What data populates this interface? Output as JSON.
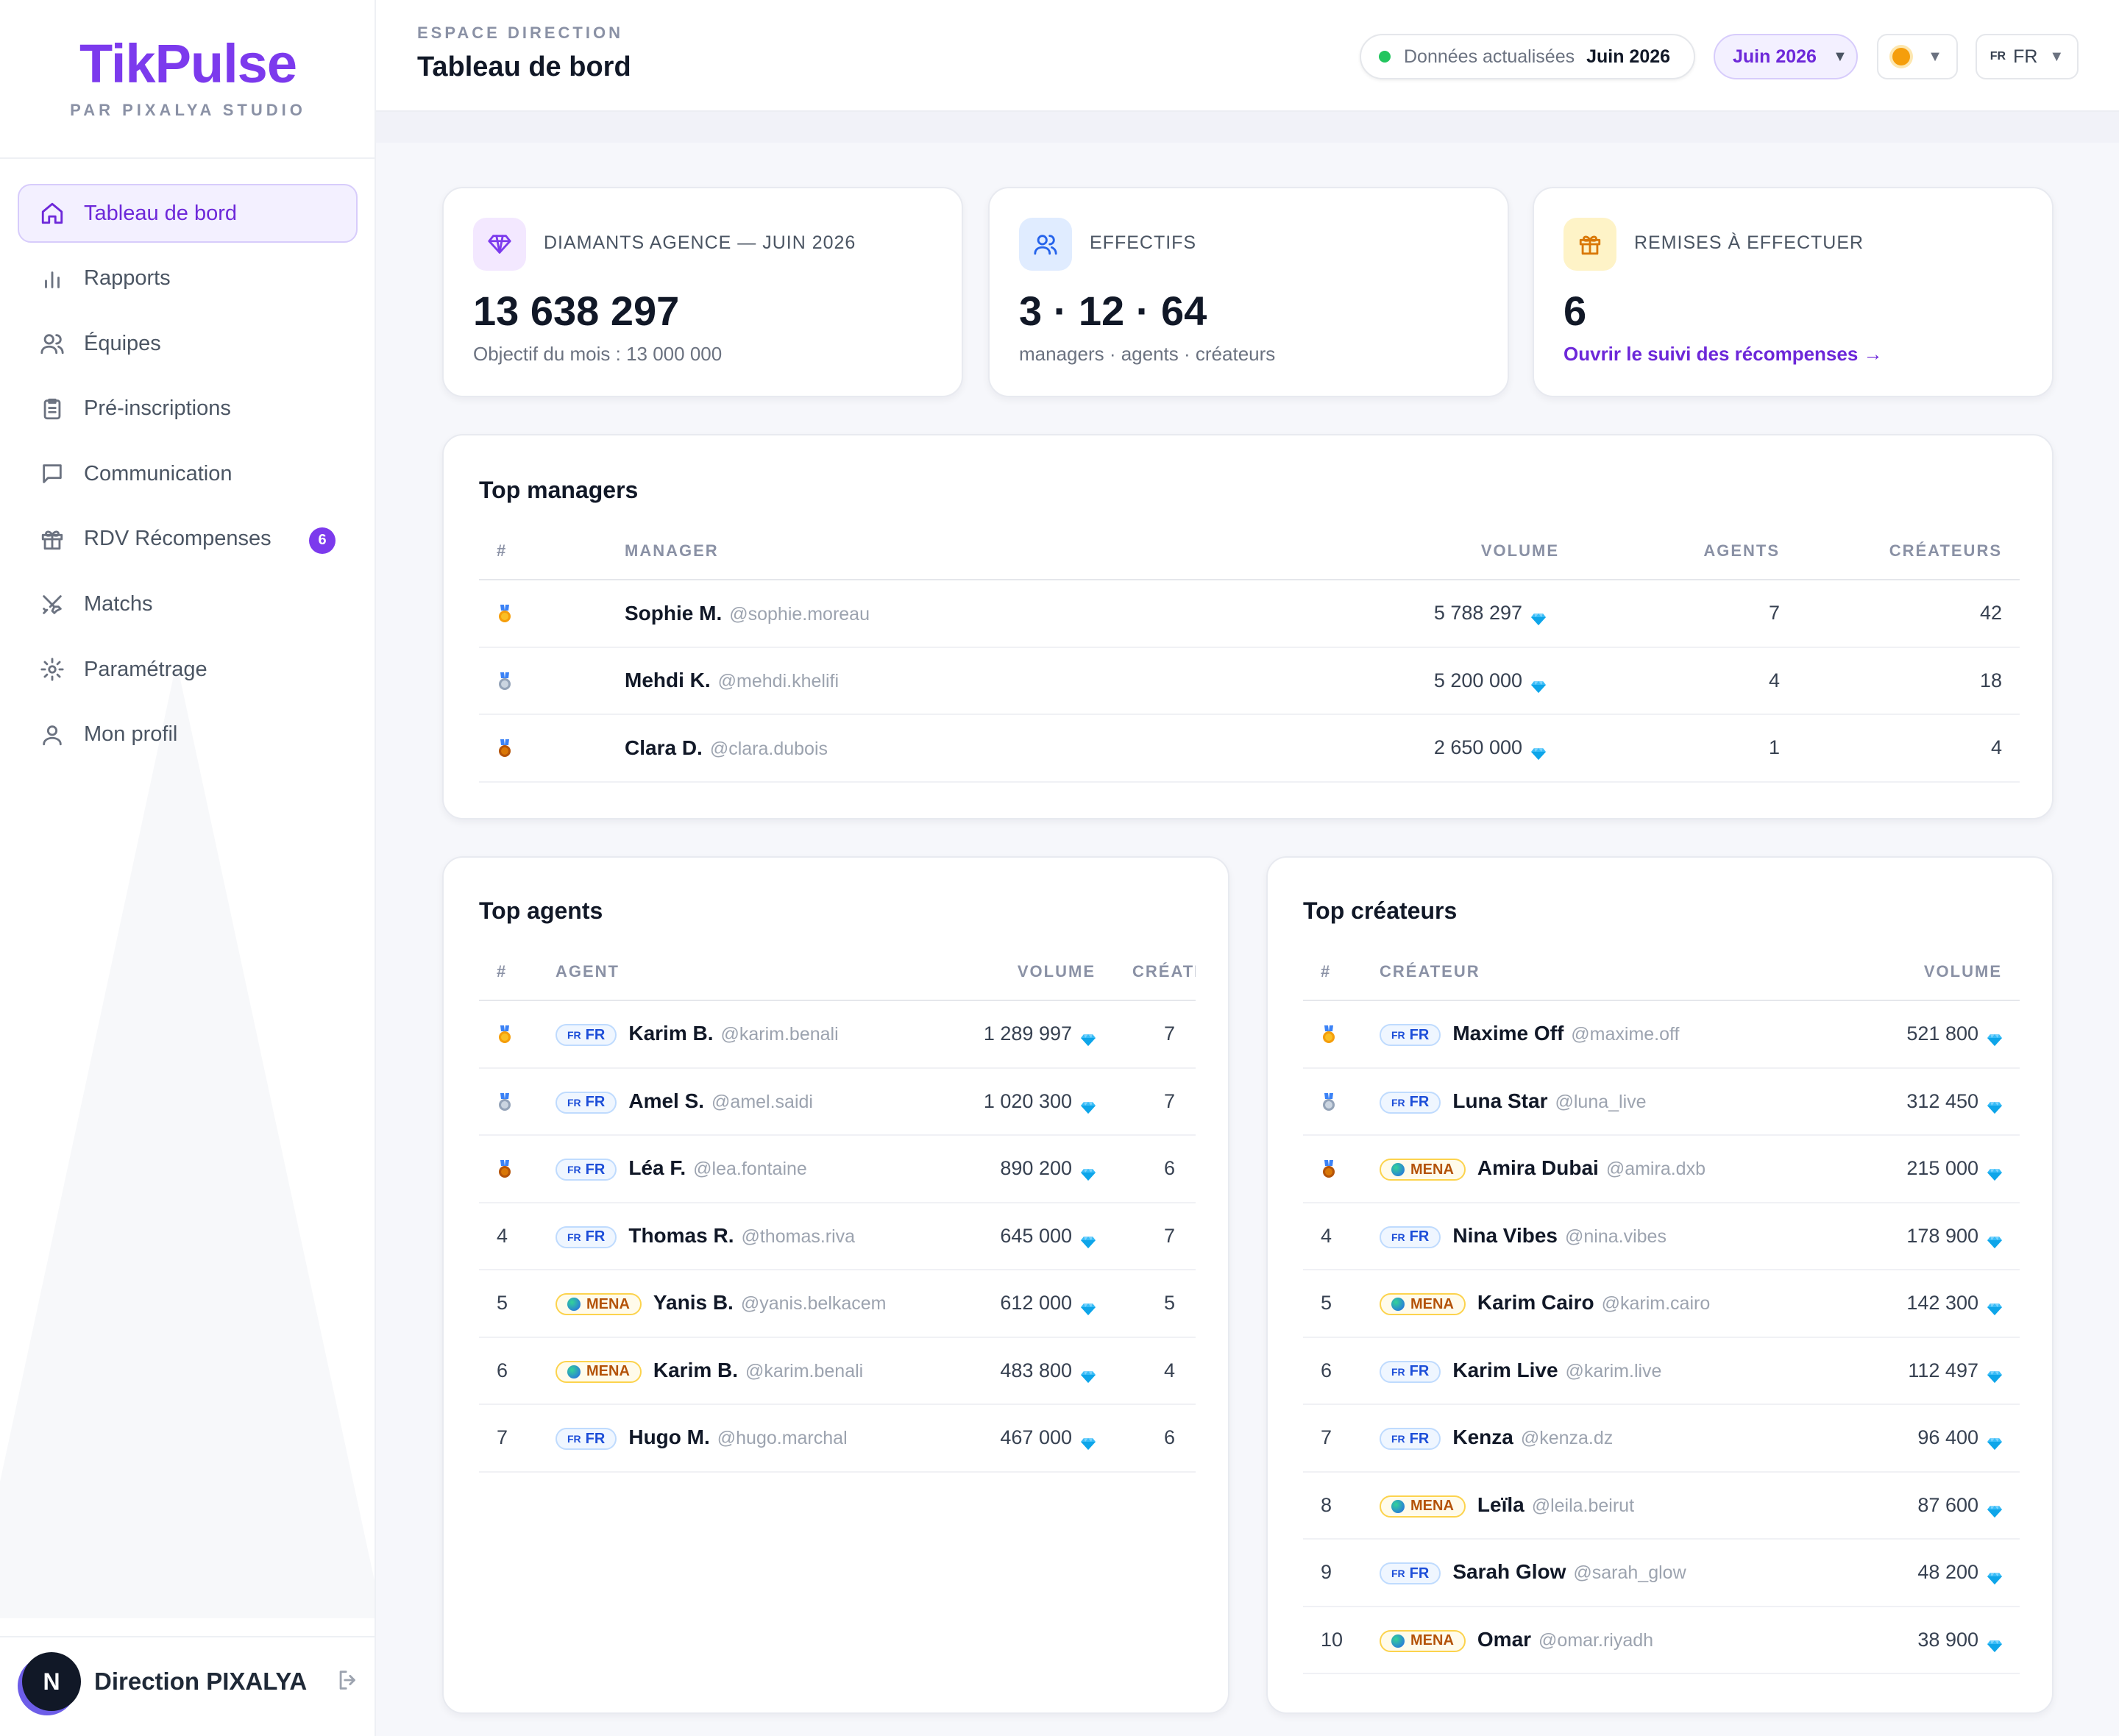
{
  "brand": {
    "name": "TikPulse",
    "subtitle": "PAR PIXALYA STUDIO"
  },
  "sidebar": {
    "items": [
      {
        "label": "Tableau de bord",
        "icon": "home-icon",
        "active": true
      },
      {
        "label": "Rapports",
        "icon": "bar-chart-icon"
      },
      {
        "label": "Équipes",
        "icon": "users-icon"
      },
      {
        "label": "Pré-inscriptions",
        "icon": "clipboard-icon"
      },
      {
        "label": "Communication",
        "icon": "message-icon"
      },
      {
        "label": "RDV Récompenses",
        "icon": "gift-icon",
        "badge": "6"
      },
      {
        "label": "Matchs",
        "icon": "swords-icon"
      },
      {
        "label": "Paramétrage",
        "icon": "gear-icon"
      },
      {
        "label": "Mon profil",
        "icon": "user-icon"
      }
    ],
    "user": {
      "initial": "N",
      "name": "Direction PIXALYA"
    }
  },
  "header": {
    "eyebrow": "ESPACE DIRECTION",
    "title": "Tableau de bord",
    "status_label": "Données actualisées",
    "status_value": "Juin 2026",
    "month": "Juin 2026",
    "lang": "FR",
    "lang_flag": "FR"
  },
  "colors": {
    "accent": "#7c3aed",
    "fr_tag": "#1d4ed8",
    "mena_tag": "#b45309",
    "status": "#22c55e"
  },
  "stats": {
    "diamonds": {
      "label": "DIAMANTS AGENCE — JUIN 2026",
      "value": "13 638 297",
      "sub": "Objectif du mois : 13 000 000"
    },
    "staff": {
      "label": "EFFECTIFS",
      "value": "3 · 12 · 64",
      "sub": "managers · agents · créateurs"
    },
    "rewards": {
      "label": "REMISES À EFFECTUER",
      "value": "6",
      "link": "Ouvrir le suivi des récompenses →"
    }
  },
  "top_managers": {
    "title": "Top managers",
    "columns": {
      "rank": "#",
      "name": "MANAGER",
      "volume": "VOLUME",
      "agents": "AGENTS",
      "creators": "CRÉATEURS"
    },
    "rows": [
      {
        "rank": "1",
        "name": "Sophie M.",
        "handle": "@sophie.moreau",
        "volume": "5 788 297",
        "agents": "7",
        "creators": "42"
      },
      {
        "rank": "2",
        "name": "Mehdi K.",
        "handle": "@mehdi.khelifi",
        "volume": "5 200 000",
        "agents": "4",
        "creators": "18"
      },
      {
        "rank": "3",
        "name": "Clara D.",
        "handle": "@clara.dubois",
        "volume": "2 650 000",
        "agents": "1",
        "creators": "4"
      }
    ]
  },
  "top_agents": {
    "title": "Top agents",
    "columns": {
      "rank": "#",
      "name": "AGENT",
      "volume": "VOLUME",
      "creators": "CRÉATEURS"
    },
    "rows": [
      {
        "rank": "1",
        "tag": "FR",
        "name": "Karim B.",
        "handle": "@karim.benali",
        "volume": "1 289 997",
        "creators": "7"
      },
      {
        "rank": "2",
        "tag": "FR",
        "name": "Amel S.",
        "handle": "@amel.saidi",
        "volume": "1 020 300",
        "creators": "7"
      },
      {
        "rank": "3",
        "tag": "FR",
        "name": "Léa F.",
        "handle": "@lea.fontaine",
        "volume": "890 200",
        "creators": "6"
      },
      {
        "rank": "4",
        "tag": "FR",
        "name": "Thomas R.",
        "handle": "@thomas.riva",
        "volume": "645 000",
        "creators": "7"
      },
      {
        "rank": "5",
        "tag": "MENA",
        "name": "Yanis B.",
        "handle": "@yanis.belkacem",
        "volume": "612 000",
        "creators": "5"
      },
      {
        "rank": "6",
        "tag": "MENA",
        "name": "Karim B.",
        "handle": "@karim.benali",
        "volume": "483 800",
        "creators": "4"
      },
      {
        "rank": "7",
        "tag": "FR",
        "name": "Hugo M.",
        "handle": "@hugo.marchal",
        "volume": "467 000",
        "creators": "6"
      }
    ]
  },
  "top_creators": {
    "title": "Top créateurs",
    "columns": {
      "rank": "#",
      "name": "CRÉATEUR",
      "volume": "VOLUME"
    },
    "rows": [
      {
        "rank": "1",
        "tag": "FR",
        "name": "Maxime Off",
        "handle": "@maxime.off",
        "volume": "521 800"
      },
      {
        "rank": "2",
        "tag": "FR",
        "name": "Luna Star",
        "handle": "@luna_live",
        "volume": "312 450"
      },
      {
        "rank": "3",
        "tag": "MENA",
        "name": "Amira Dubai",
        "handle": "@amira.dxb",
        "volume": "215 000"
      },
      {
        "rank": "4",
        "tag": "FR",
        "name": "Nina Vibes",
        "handle": "@nina.vibes",
        "volume": "178 900"
      },
      {
        "rank": "5",
        "tag": "MENA",
        "name": "Karim Cairo",
        "handle": "@karim.cairo",
        "volume": "142 300"
      },
      {
        "rank": "6",
        "tag": "FR",
        "name": "Karim Live",
        "handle": "@karim.live",
        "volume": "112 497"
      },
      {
        "rank": "7",
        "tag": "FR",
        "name": "Kenza",
        "handle": "@kenza.dz",
        "volume": "96 400"
      },
      {
        "rank": "8",
        "tag": "MENA",
        "name": "Leïla",
        "handle": "@leila.beirut",
        "volume": "87 600"
      },
      {
        "rank": "9",
        "tag": "FR",
        "name": "Sarah Glow",
        "handle": "@sarah_glow",
        "volume": "48 200"
      },
      {
        "rank": "10",
        "tag": "MENA",
        "name": "Omar",
        "handle": "@omar.riyadh",
        "volume": "38 900"
      }
    ]
  }
}
